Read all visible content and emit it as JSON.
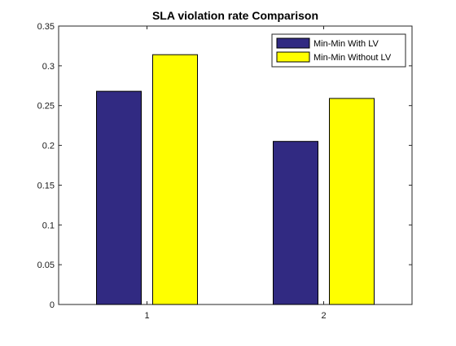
{
  "chart_data": {
    "type": "bar",
    "title": "SLA violation rate Comparison",
    "xlabel": "",
    "ylabel": "",
    "categories": [
      "1",
      "2"
    ],
    "series": [
      {
        "name": "Min-Min With LV",
        "values": [
          0.268,
          0.205
        ],
        "color": "#312a82"
      },
      {
        "name": "Min-Min Without LV",
        "values": [
          0.314,
          0.259
        ],
        "color": "#ffff00"
      }
    ],
    "ylim": [
      0,
      0.35
    ],
    "yticks": [
      "0",
      "0.05",
      "0.1",
      "0.15",
      "0.2",
      "0.25",
      "0.3",
      "0.35"
    ],
    "grid": false,
    "legend_position": "top-right"
  }
}
